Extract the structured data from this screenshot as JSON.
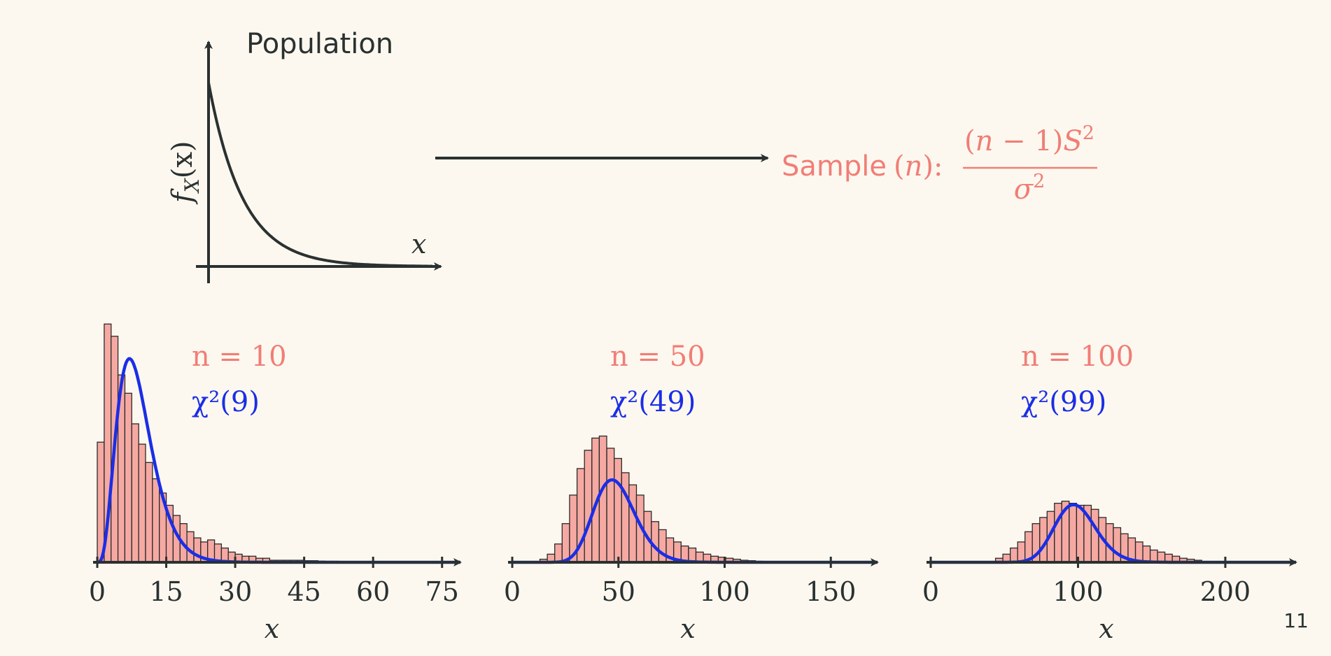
{
  "population": {
    "title": "Population",
    "ylabel": "f_X(x)",
    "ylabel_main": "f",
    "ylabel_sub": "X",
    "ylabel_arg": "(x)",
    "xlabel": "x"
  },
  "sample": {
    "label": "Sample (n):",
    "label_word": "Sample",
    "label_paren_open": "(",
    "label_var": "n",
    "label_paren_close": "):",
    "numerator": "(n − 1)S²",
    "numerator_parts": [
      "(",
      "n",
      " − 1)",
      "S",
      "2"
    ],
    "denominator": "σ²",
    "denominator_parts": [
      "σ",
      "2"
    ]
  },
  "colors": {
    "background": "#fdf8ef",
    "axis": "#2a3131",
    "sample_text": "#f07e77",
    "curve": "#1a2ee6",
    "bar_fill": "#f5a9a2",
    "bar_stroke": "#2a2a2a"
  },
  "page_number": "11",
  "chart_data": [
    {
      "type": "bar",
      "n_label": "n = 10",
      "chi_label": "χ²(9)",
      "chi_df": 9,
      "xlabel": "x",
      "xlim": [
        0,
        79
      ],
      "ylim": [
        0,
        0.125
      ],
      "xticks": [
        0,
        15,
        30,
        45,
        60,
        75
      ],
      "bins": {
        "start": 0,
        "width": 1.5,
        "values": [
          0.059,
          0.117,
          0.111,
          0.092,
          0.083,
          0.068,
          0.058,
          0.049,
          0.041,
          0.034,
          0.028,
          0.023,
          0.019,
          0.015,
          0.012,
          0.01,
          0.011,
          0.009,
          0.007,
          0.005,
          0.004,
          0.003,
          0.003,
          0.002,
          0.002,
          0.001,
          0.001,
          0.001,
          0.001,
          0.001,
          0.0008,
          0.0008,
          0.0006,
          0.0005,
          0.0005,
          0.0004,
          0.0004,
          0.0003,
          0.0003,
          0.0002
        ]
      },
      "curve_peak": 0.1
    },
    {
      "type": "bar",
      "n_label": "n = 50",
      "chi_label": "χ²(49)",
      "chi_df": 49,
      "xlabel": "x",
      "xlim": [
        0,
        172
      ],
      "ylim": [
        0,
        0.125
      ],
      "xticks": [
        0,
        50,
        100,
        150
      ],
      "bins": {
        "start": 13,
        "width": 3.5,
        "values": [
          0.0015,
          0.004,
          0.009,
          0.019,
          0.033,
          0.046,
          0.055,
          0.061,
          0.062,
          0.056,
          0.051,
          0.044,
          0.038,
          0.033,
          0.025,
          0.02,
          0.016,
          0.012,
          0.01,
          0.008,
          0.007,
          0.005,
          0.004,
          0.003,
          0.0025,
          0.002,
          0.0015,
          0.001,
          0.0008,
          0.0005
        ]
      },
      "curve_peak": 0.0405
    },
    {
      "type": "bar",
      "n_label": "n = 100",
      "chi_label": "χ²(99)",
      "chi_df": 99,
      "xlabel": "x",
      "xlim": [
        0,
        248
      ],
      "ylim": [
        0,
        0.125
      ],
      "xticks": [
        0,
        100,
        200
      ],
      "bins": {
        "start": 44,
        "width": 5,
        "values": [
          0.002,
          0.004,
          0.007,
          0.01,
          0.015,
          0.019,
          0.022,
          0.025,
          0.029,
          0.03,
          0.029,
          0.028,
          0.028,
          0.026,
          0.022,
          0.019,
          0.017,
          0.014,
          0.012,
          0.01,
          0.008,
          0.006,
          0.005,
          0.004,
          0.003,
          0.002,
          0.0015,
          0.001
        ]
      },
      "curve_peak": 0.0283
    }
  ]
}
